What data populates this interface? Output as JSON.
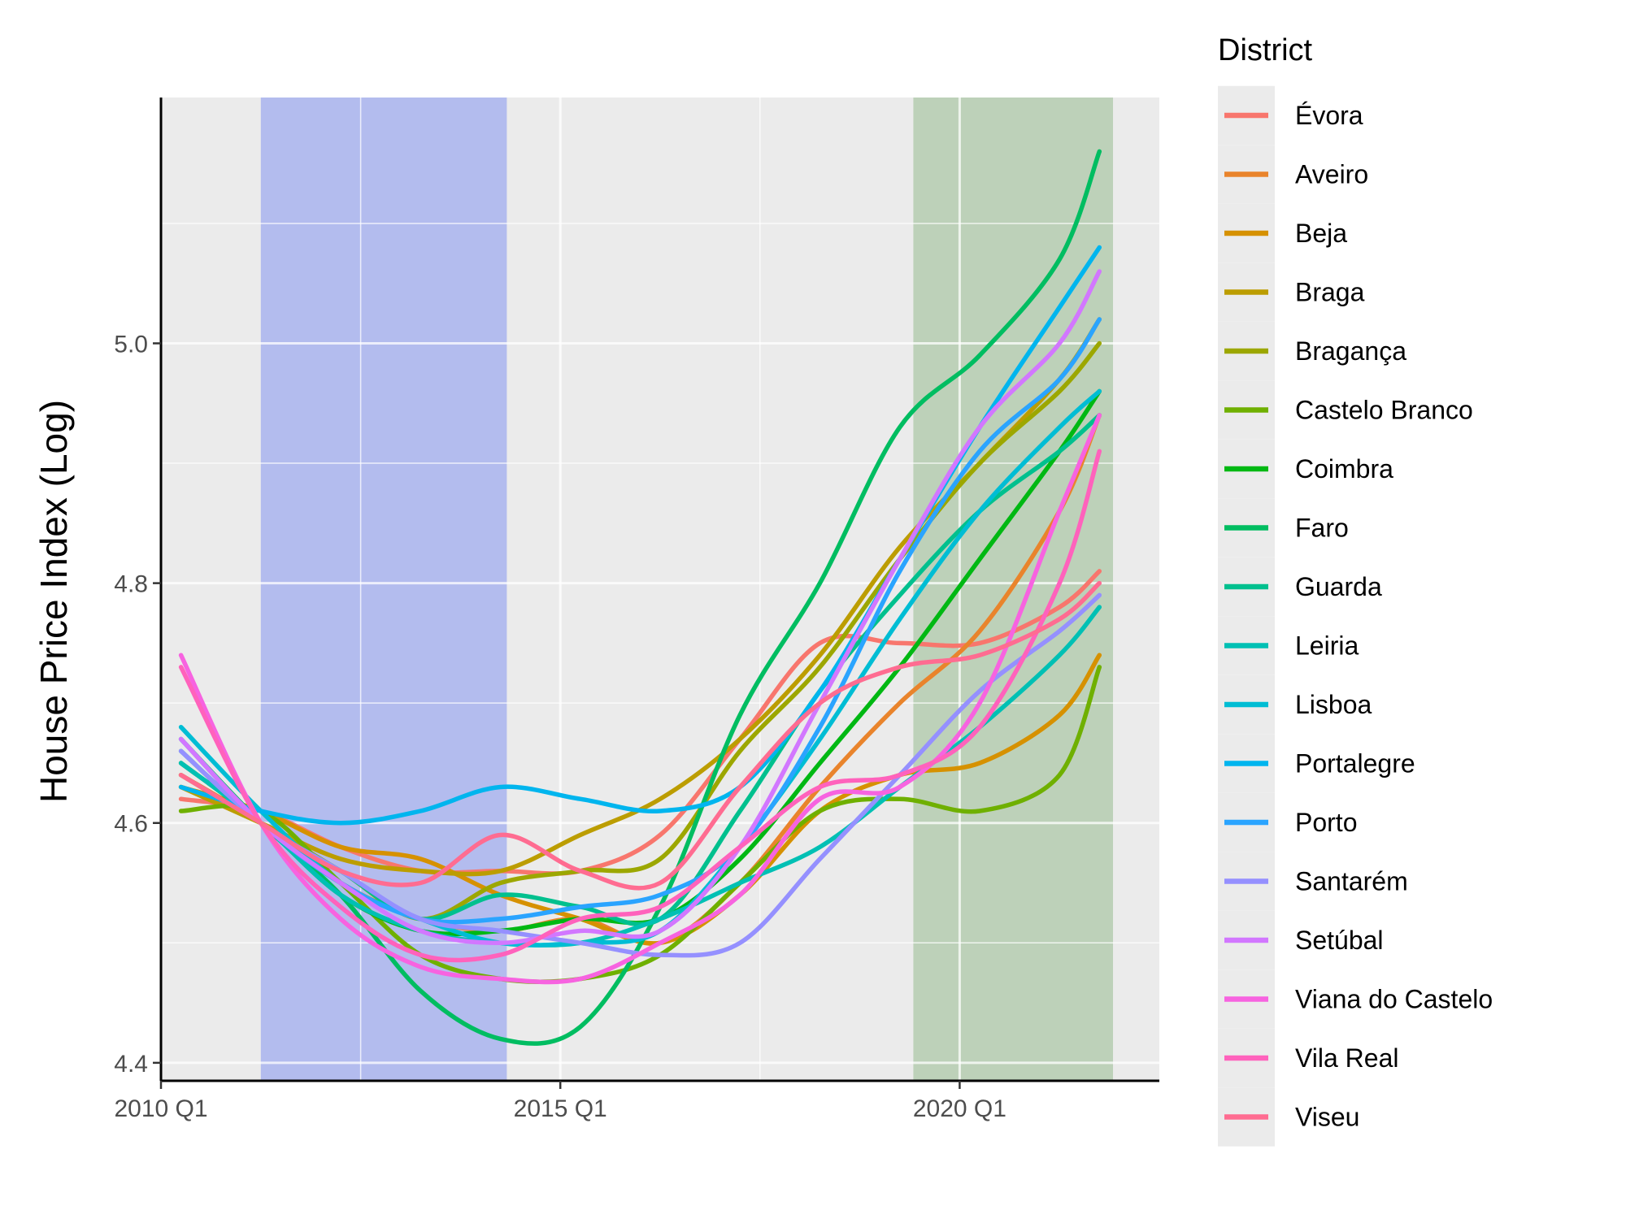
{
  "chart_data": {
    "type": "line",
    "xlabel": "",
    "ylabel": "House Price Index (Log)",
    "xlim": [
      2010.0,
      2022.5
    ],
    "ylim": [
      4.385,
      5.205
    ],
    "x_ticks": [
      {
        "label": "2010 Q1",
        "value": 2010.0
      },
      {
        "label": "2015 Q1",
        "value": 2015.0
      },
      {
        "label": "2020 Q1",
        "value": 2020.0
      }
    ],
    "y_ticks": [
      {
        "label": "4.4",
        "value": 4.4
      },
      {
        "label": "4.6",
        "value": 4.6
      },
      {
        "label": "4.8",
        "value": 4.8
      },
      {
        "label": "5.0",
        "value": 5.0
      }
    ],
    "grid": true,
    "legend_position": "right",
    "legend_title": "District",
    "shaded_periods": [
      {
        "start": 2011.25,
        "end": 2014.33,
        "color": "#8e9cf0"
      },
      {
        "start": 2019.42,
        "end": 2021.92,
        "color": "#9fbf97"
      }
    ],
    "x": [
      2010.25,
      2011.25,
      2012.25,
      2013.25,
      2014.25,
      2015.25,
      2016.25,
      2017.25,
      2018.25,
      2019.25,
      2020.25,
      2021.25,
      2021.75
    ],
    "series": [
      {
        "name": "Évora",
        "color": "#F8766D",
        "values": [
          4.62,
          4.61,
          4.58,
          4.56,
          4.56,
          4.56,
          4.59,
          4.67,
          4.75,
          4.75,
          4.75,
          4.78,
          4.81
        ]
      },
      {
        "name": "Aveiro",
        "color": "#E9842C",
        "values": [
          4.64,
          4.6,
          4.55,
          4.52,
          4.51,
          4.52,
          4.5,
          4.55,
          4.63,
          4.7,
          4.76,
          4.86,
          4.94
        ]
      },
      {
        "name": "Beja",
        "color": "#D69100",
        "values": [
          4.63,
          4.61,
          4.58,
          4.57,
          4.54,
          4.52,
          4.5,
          4.54,
          4.61,
          4.64,
          4.65,
          4.69,
          4.74
        ]
      },
      {
        "name": "Braga",
        "color": "#BC9D00",
        "values": [
          4.63,
          4.6,
          4.57,
          4.56,
          4.56,
          4.59,
          4.62,
          4.67,
          4.74,
          4.83,
          4.9,
          4.97,
          5.02
        ]
      },
      {
        "name": "Bragança",
        "color": "#9CA700",
        "values": [
          4.64,
          4.6,
          4.56,
          4.52,
          4.55,
          4.56,
          4.57,
          4.66,
          4.73,
          4.82,
          4.9,
          4.96,
          5.0
        ]
      },
      {
        "name": "Castelo Branco",
        "color": "#6FB000",
        "values": [
          4.61,
          4.61,
          4.55,
          4.49,
          4.47,
          4.47,
          4.49,
          4.55,
          4.61,
          4.62,
          4.61,
          4.64,
          4.73
        ]
      },
      {
        "name": "Coimbra",
        "color": "#00B813",
        "values": [
          4.65,
          4.6,
          4.54,
          4.51,
          4.51,
          4.52,
          4.52,
          4.57,
          4.65,
          4.73,
          4.82,
          4.91,
          4.96
        ]
      },
      {
        "name": "Faro",
        "color": "#00BD61",
        "values": [
          4.67,
          4.6,
          4.54,
          4.46,
          4.42,
          4.43,
          4.53,
          4.69,
          4.8,
          4.93,
          4.99,
          5.07,
          5.16
        ]
      },
      {
        "name": "Guarda",
        "color": "#00C08E",
        "values": [
          4.66,
          4.6,
          4.56,
          4.52,
          4.54,
          4.53,
          4.52,
          4.61,
          4.71,
          4.79,
          4.86,
          4.91,
          4.94
        ]
      },
      {
        "name": "Leiria",
        "color": "#00C0B4",
        "values": [
          4.65,
          4.6,
          4.54,
          4.51,
          4.5,
          4.5,
          4.52,
          4.55,
          4.58,
          4.63,
          4.68,
          4.74,
          4.78
        ]
      },
      {
        "name": "Lisboa",
        "color": "#00BDD4",
        "values": [
          4.68,
          4.61,
          4.55,
          4.52,
          4.5,
          4.5,
          4.51,
          4.58,
          4.67,
          4.77,
          4.86,
          4.93,
          4.96
        ]
      },
      {
        "name": "Portalegre",
        "color": "#00B5EE",
        "values": [
          4.63,
          4.61,
          4.6,
          4.61,
          4.63,
          4.62,
          4.61,
          4.63,
          4.71,
          4.82,
          4.93,
          5.03,
          5.08
        ]
      },
      {
        "name": "Porto",
        "color": "#2AA4FF",
        "values": [
          4.67,
          4.6,
          4.55,
          4.52,
          4.52,
          4.53,
          4.54,
          4.58,
          4.68,
          4.81,
          4.91,
          4.97,
          5.02
        ]
      },
      {
        "name": "Santarém",
        "color": "#9590FF",
        "values": [
          4.66,
          4.6,
          4.56,
          4.52,
          4.51,
          4.5,
          4.49,
          4.5,
          4.57,
          4.64,
          4.71,
          4.76,
          4.79
        ]
      },
      {
        "name": "Setúbal",
        "color": "#D277FF",
        "values": [
          4.67,
          4.6,
          4.55,
          4.51,
          4.5,
          4.51,
          4.51,
          4.58,
          4.7,
          4.82,
          4.93,
          5.0,
          5.06
        ]
      },
      {
        "name": "Viana do Castelo",
        "color": "#F763E0",
        "values": [
          4.74,
          4.6,
          4.52,
          4.48,
          4.47,
          4.47,
          4.5,
          4.54,
          4.62,
          4.63,
          4.7,
          4.86,
          4.94
        ]
      },
      {
        "name": "Vila Real",
        "color": "#FF62BC",
        "values": [
          4.73,
          4.6,
          4.53,
          4.49,
          4.49,
          4.52,
          4.53,
          4.58,
          4.63,
          4.64,
          4.68,
          4.8,
          4.91
        ]
      },
      {
        "name": "Viseu",
        "color": "#FF6C91",
        "values": [
          4.64,
          4.6,
          4.56,
          4.55,
          4.59,
          4.56,
          4.55,
          4.63,
          4.7,
          4.73,
          4.74,
          4.77,
          4.8
        ]
      }
    ]
  }
}
